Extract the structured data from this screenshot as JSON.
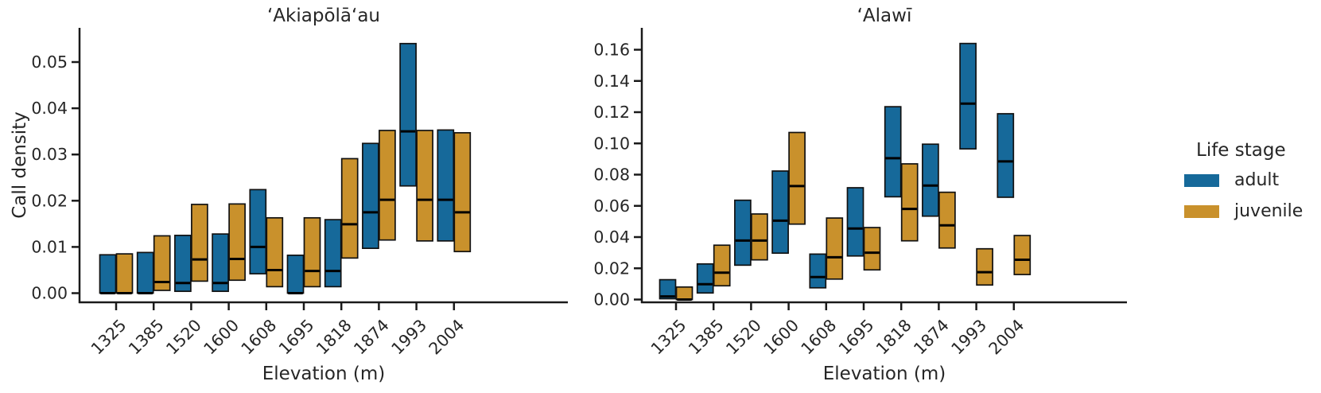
{
  "figure": {
    "legend": {
      "title": "Life stage",
      "items": [
        {
          "label": "adult",
          "color": "#16699A"
        },
        {
          "label": "juvenile",
          "color": "#C9912C"
        }
      ]
    },
    "colors": {
      "axis": "#1a1a1a",
      "text": "#262626",
      "median": "#000000"
    }
  },
  "chart_data": [
    {
      "type": "crossbar-boxplot",
      "title": "ʻAkiapōlāʻau",
      "xlabel": "Elevation (m)",
      "ylabel": "Call density",
      "categories": [
        "1325",
        "1385",
        "1520",
        "1600",
        "1608",
        "1695",
        "1818",
        "1874",
        "1993",
        "2004"
      ],
      "ytick_labels": [
        "0.00",
        "0.01",
        "0.02",
        "0.03",
        "0.04",
        "0.05"
      ],
      "yticks": [
        0.0,
        0.01,
        0.02,
        0.03,
        0.04,
        0.05
      ],
      "ylim": [
        0,
        0.0575
      ],
      "grid": false,
      "legend_position": "right",
      "series": [
        {
          "name": "adult",
          "boxes": [
            [
              0.0,
              0.0,
              0.0083
            ],
            [
              0.0,
              0.0,
              0.0088
            ],
            [
              0.0004,
              0.0022,
              0.0125
            ],
            [
              0.0004,
              0.0022,
              0.0128
            ],
            [
              0.0042,
              0.01,
              0.0224
            ],
            [
              0.0,
              0.0,
              0.0082
            ],
            [
              0.0014,
              0.0048,
              0.0159
            ],
            [
              0.0097,
              0.0175,
              0.0324
            ],
            [
              0.0232,
              0.035,
              0.054
            ],
            [
              0.0113,
              0.0202,
              0.0353
            ]
          ]
        },
        {
          "name": "juvenile",
          "boxes": [
            [
              0.0,
              0.0,
              0.0085
            ],
            [
              0.0006,
              0.0024,
              0.0124
            ],
            [
              0.0026,
              0.0073,
              0.0192
            ],
            [
              0.0028,
              0.0074,
              0.0193
            ],
            [
              0.0014,
              0.005,
              0.0163
            ],
            [
              0.0014,
              0.0048,
              0.0163
            ],
            [
              0.0076,
              0.0149,
              0.0291
            ],
            [
              0.0115,
              0.0202,
              0.0352
            ],
            [
              0.0113,
              0.0202,
              0.0352
            ],
            [
              0.009,
              0.0175,
              0.0347
            ]
          ]
        }
      ]
    },
    {
      "type": "crossbar-boxplot",
      "title": "ʻAlawī",
      "xlabel": "Elevation (m)",
      "ylabel": "",
      "categories": [
        "1325",
        "1385",
        "1520",
        "1600",
        "1608",
        "1695",
        "1818",
        "1874",
        "1993",
        "2004"
      ],
      "ytick_labels": [
        "0.00",
        "0.02",
        "0.04",
        "0.06",
        "0.08",
        "0.10",
        "0.12",
        "0.14",
        "0.16"
      ],
      "yticks": [
        0.0,
        0.02,
        0.04,
        0.06,
        0.08,
        0.1,
        0.12,
        0.14,
        0.16
      ],
      "ylim": [
        0,
        0.174
      ],
      "grid": false,
      "legend_position": "right",
      "series": [
        {
          "name": "adult",
          "boxes": [
            [
              0.0005,
              0.002,
              0.0127
            ],
            [
              0.0042,
              0.0098,
              0.0228
            ],
            [
              0.022,
              0.0378,
              0.0636
            ],
            [
              0.0297,
              0.0505,
              0.0823
            ],
            [
              0.0075,
              0.0144,
              0.0291
            ],
            [
              0.0279,
              0.0455,
              0.0716
            ],
            [
              0.0658,
              0.0905,
              0.1235
            ],
            [
              0.0534,
              0.073,
              0.0995
            ],
            [
              0.0965,
              0.1255,
              0.164
            ],
            [
              0.0655,
              0.0885,
              0.119
            ]
          ]
        },
        {
          "name": "juvenile",
          "boxes": [
            [
              0.0,
              0.0,
              0.008
            ],
            [
              0.0088,
              0.0172,
              0.0348
            ],
            [
              0.0254,
              0.0378,
              0.0548
            ],
            [
              0.0483,
              0.0727,
              0.107
            ],
            [
              0.0131,
              0.0271,
              0.0522
            ],
            [
              0.019,
              0.03,
              0.0461
            ],
            [
              0.0376,
              0.058,
              0.0869
            ],
            [
              0.033,
              0.0475,
              0.0687
            ],
            [
              0.0093,
              0.0175,
              0.0325
            ],
            [
              0.016,
              0.0255,
              0.041
            ]
          ]
        }
      ]
    }
  ]
}
